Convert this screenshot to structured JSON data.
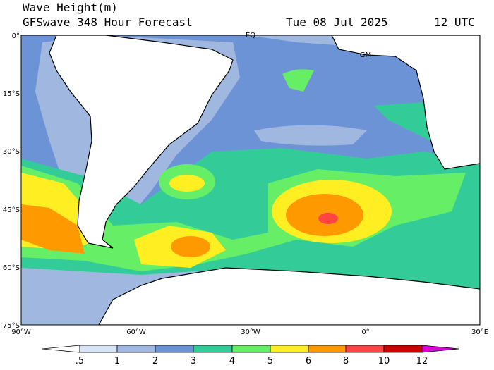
{
  "header": {
    "title": "Wave Height(m)",
    "subtitle": "GFSwave 348 Hour Forecast",
    "date": "Tue 08 Jul 2025",
    "time": "12 UTC"
  },
  "map": {
    "lat_labels": [
      "0°",
      "15°S",
      "30°S",
      "45°S",
      "60°S",
      "75°S"
    ],
    "lon_labels": [
      "90°W",
      "60°W",
      "30°W",
      "0°",
      "30°E"
    ],
    "markers": [
      "EQ",
      "GM"
    ]
  },
  "colorbar": {
    "labels": [
      ".5",
      "1",
      "2",
      "3",
      "4",
      "5",
      "6",
      "8",
      "10",
      "12"
    ]
  }
}
